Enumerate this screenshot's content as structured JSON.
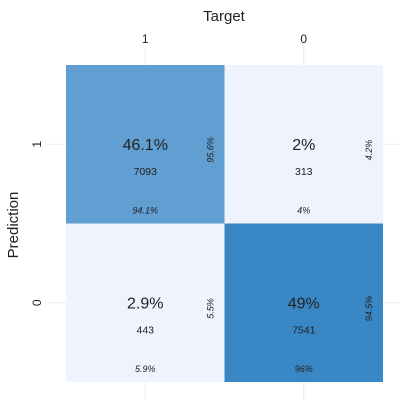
{
  "chart_data": {
    "type": "confusion_matrix",
    "x_label": "Target",
    "y_label": "Prediction",
    "target_categories": [
      "1",
      "0"
    ],
    "prediction_categories": [
      "1",
      "0"
    ],
    "color_low": "#eef3fd",
    "color_high": "#3a87c5",
    "cells": [
      [
        {
          "percent": {
            "value": 46.1,
            "label": "46.1%"
          },
          "count": 7093,
          "column_percent": {
            "value": 94.1,
            "label": "94.1%"
          },
          "row_percent": {
            "value": 95.6,
            "label": "95.6%"
          }
        },
        {
          "percent": {
            "value": 2,
            "label": "2%"
          },
          "count": 313,
          "column_percent": {
            "value": 4,
            "label": "4%"
          },
          "row_percent": {
            "value": 4.2,
            "label": "4.2%"
          }
        }
      ],
      [
        {
          "percent": {
            "value": 2.9,
            "label": "2.9%"
          },
          "count": 443,
          "column_percent": {
            "value": 5.9,
            "label": "5.9%"
          },
          "row_percent": {
            "value": 5.5,
            "label": "5.5%"
          }
        },
        {
          "percent": {
            "value": 49,
            "label": "49%"
          },
          "count": 7541,
          "column_percent": {
            "value": 96,
            "label": "96%"
          },
          "row_percent": {
            "value": 94.5,
            "label": "94.5%"
          }
        }
      ]
    ]
  }
}
